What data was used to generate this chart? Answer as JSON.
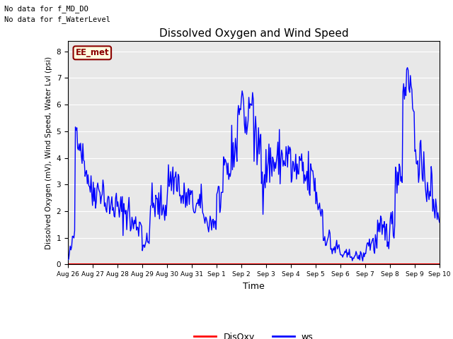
{
  "title": "Dissolved Oxygen and Wind Speed",
  "xlabel": "Time",
  "ylabel": "Dissolved Oxygen (mV), Wind Speed, Water Lvl (psi)",
  "ylim": [
    0.0,
    8.4
  ],
  "yticks": [
    0.0,
    1.0,
    2.0,
    3.0,
    4.0,
    5.0,
    6.0,
    7.0,
    8.0
  ],
  "bg_color": "#e8e8e8",
  "text_top_left_1": "No data for f_MD_DO",
  "text_top_left_2": "No data for f_WaterLevel",
  "annotation_box": "EE_met",
  "legend_labels": [
    "DisOxy",
    "ws"
  ],
  "disoxy_color": "red",
  "ws_color": "blue",
  "x_tick_labels": [
    "Aug 26",
    "Aug 27",
    "Aug 28",
    "Aug 29",
    "Aug 30",
    "Aug 31",
    "Sep 1",
    "Sep 2",
    "Sep 3",
    "Sep 4",
    "Sep 5",
    "Sep 6",
    "Sep 7",
    "Sep 8",
    "Sep 9",
    "Sep 10"
  ],
  "n_days": 15,
  "seed": 42
}
